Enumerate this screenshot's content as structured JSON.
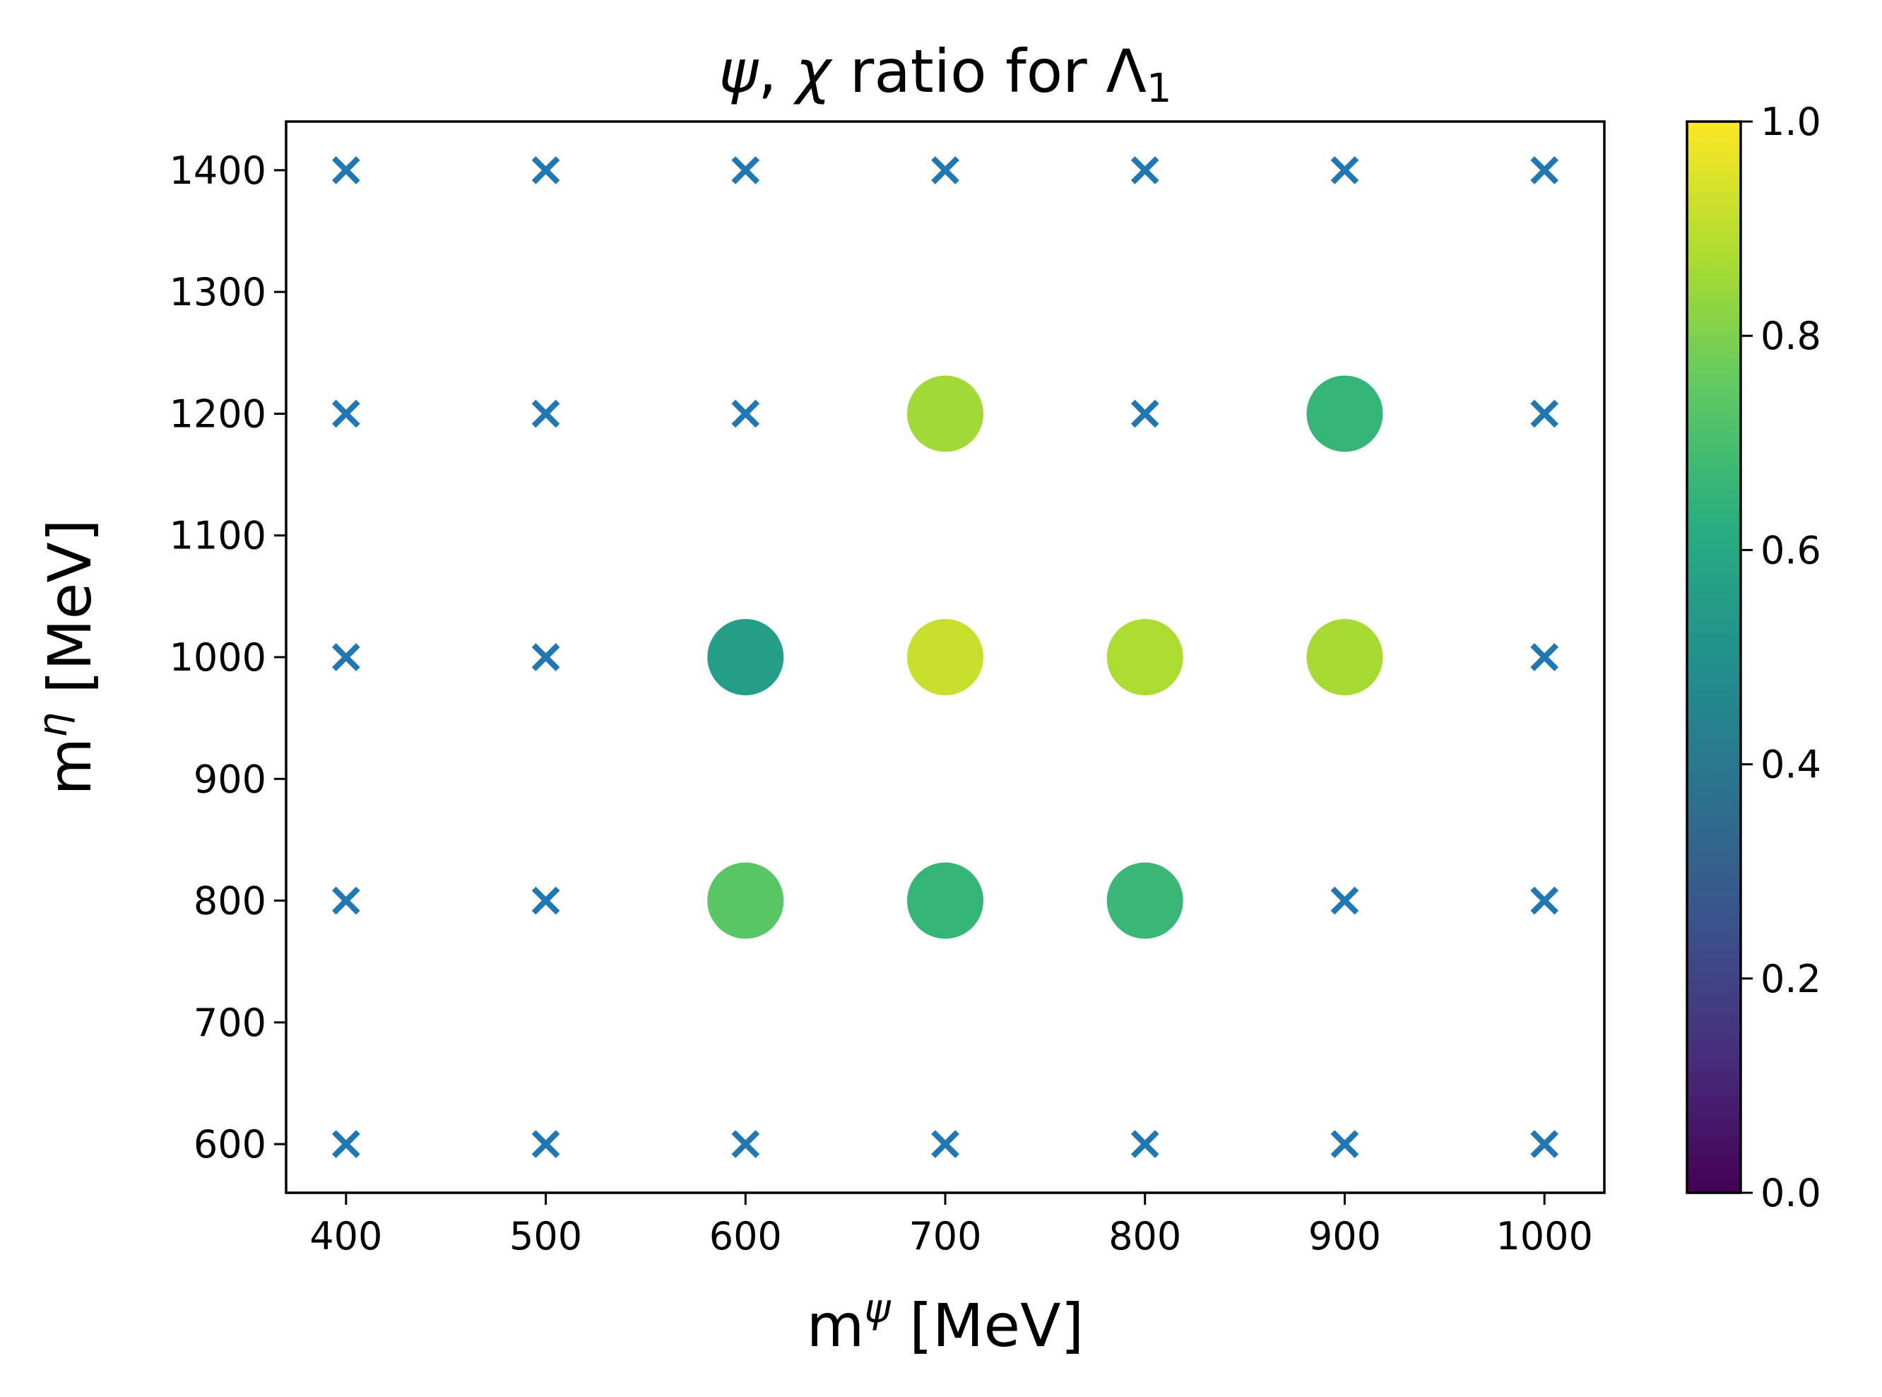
{
  "chart_data": {
    "type": "scatter",
    "title": "ψ, χ ratio for Λ₁",
    "title_parts": {
      "psi": "ψ",
      "comma": ", ",
      "chi": "χ",
      "middle": " ratio for ",
      "lambda": "Λ",
      "sub": "1"
    },
    "xlabel": "m^ψ [MeV]",
    "xlabel_parts": {
      "base": "m",
      "sup": "ψ",
      "unit": " [MeV]"
    },
    "ylabel": "m^η [MeV]",
    "ylabel_parts": {
      "base": "m",
      "sup": "η",
      "unit": " [MeV]"
    },
    "xlim": [
      370,
      1030
    ],
    "ylim": [
      560,
      1440
    ],
    "xticks": [
      400,
      500,
      600,
      700,
      800,
      900,
      1000
    ],
    "yticks": [
      600,
      700,
      800,
      900,
      1000,
      1100,
      1200,
      1300,
      1400
    ],
    "grid": false,
    "colormap": "viridis",
    "colorbar": {
      "range": [
        0,
        1
      ],
      "ticks": [
        "0.0",
        "0.2",
        "0.4",
        "0.6",
        "0.8",
        "1.0"
      ]
    },
    "cross_color": "#1f77b4",
    "series": [
      {
        "marker": "x",
        "points": [
          [
            400,
            600
          ],
          [
            500,
            600
          ],
          [
            600,
            600
          ],
          [
            700,
            600
          ],
          [
            800,
            600
          ],
          [
            900,
            600
          ],
          [
            1000,
            600
          ],
          [
            400,
            800
          ],
          [
            500,
            800
          ],
          [
            900,
            800
          ],
          [
            1000,
            800
          ],
          [
            400,
            1000
          ],
          [
            500,
            1000
          ],
          [
            1000,
            1000
          ],
          [
            400,
            1200
          ],
          [
            500,
            1200
          ],
          [
            600,
            1200
          ],
          [
            800,
            1200
          ],
          [
            1000,
            1200
          ],
          [
            400,
            1400
          ],
          [
            500,
            1400
          ],
          [
            600,
            1400
          ],
          [
            700,
            1400
          ],
          [
            800,
            1400
          ],
          [
            900,
            1400
          ],
          [
            1000,
            1400
          ]
        ]
      },
      {
        "marker": "circle",
        "points": [
          {
            "x": 600,
            "y": 800,
            "value": 0.74
          },
          {
            "x": 700,
            "y": 800,
            "value": 0.66
          },
          {
            "x": 800,
            "y": 800,
            "value": 0.67
          },
          {
            "x": 600,
            "y": 1000,
            "value": 0.56
          },
          {
            "x": 700,
            "y": 1000,
            "value": 0.92
          },
          {
            "x": 800,
            "y": 1000,
            "value": 0.88
          },
          {
            "x": 900,
            "y": 1000,
            "value": 0.87
          },
          {
            "x": 700,
            "y": 1200,
            "value": 0.86
          },
          {
            "x": 900,
            "y": 1200,
            "value": 0.66
          }
        ]
      }
    ]
  }
}
